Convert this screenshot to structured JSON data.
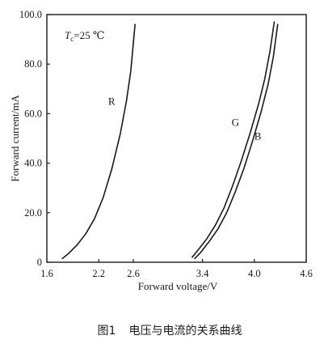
{
  "chart_data": {
    "type": "line",
    "xlabel": "Forward voltage/V",
    "ylabel": "Forward current/mA",
    "xlim": [
      1.6,
      4.6
    ],
    "ylim": [
      0,
      100
    ],
    "x_ticks": [
      "1.6",
      "2.2",
      "2.6",
      "3.4",
      "4.0",
      "4.6"
    ],
    "x_tick_values": [
      1.6,
      2.2,
      2.6,
      3.4,
      4.0,
      4.6
    ],
    "y_ticks": [
      "0",
      "20.0",
      "40.0",
      "60.0",
      "80.0",
      "100.0"
    ],
    "y_tick_values": [
      0,
      20,
      40,
      60,
      80,
      100
    ],
    "grid": false,
    "annotation": {
      "symbol": "T",
      "subscript": "c",
      "text": "=25 ℃"
    },
    "series": [
      {
        "name": "R",
        "x": [
          1.78,
          1.85,
          1.95,
          2.05,
          2.15,
          2.25,
          2.35,
          2.45,
          2.52,
          2.57,
          2.62
        ],
        "y": [
          1.5,
          3.5,
          7.0,
          11.5,
          17.5,
          26.0,
          37.5,
          52.0,
          65.0,
          77.0,
          96.0
        ],
        "label_x": 2.35,
        "label_y": 63.5
      },
      {
        "name": "G",
        "x": [
          3.28,
          3.35,
          3.45,
          3.55,
          3.65,
          3.75,
          3.85,
          3.95,
          4.05,
          4.12,
          4.18,
          4.23
        ],
        "y": [
          2.0,
          5.0,
          9.5,
          15.0,
          22.0,
          31.0,
          41.0,
          52.0,
          64.0,
          74.0,
          85.0,
          97.0
        ],
        "label_x": 3.78,
        "label_y": 55.0
      },
      {
        "name": "B",
        "x": [
          3.31,
          3.38,
          3.48,
          3.58,
          3.68,
          3.78,
          3.88,
          3.98,
          4.08,
          4.16,
          4.22,
          4.27
        ],
        "y": [
          1.5,
          4.0,
          8.5,
          13.5,
          20.0,
          28.5,
          38.0,
          49.0,
          61.0,
          72.0,
          83.0,
          96.0
        ],
        "label_x": 4.04,
        "label_y": 49.5
      }
    ]
  },
  "figure": {
    "caption_number": "图1",
    "caption_text": "电压与电流的关系曲线"
  }
}
